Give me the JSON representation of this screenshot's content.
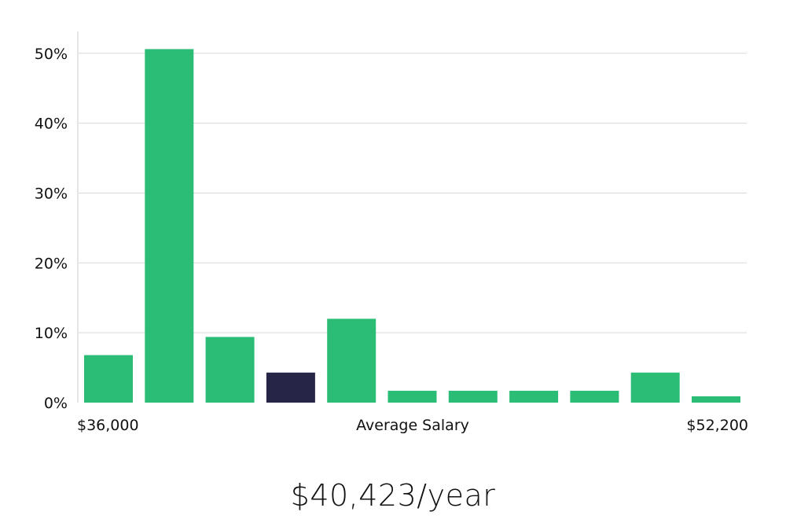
{
  "chart_data": {
    "type": "bar",
    "title": "",
    "xlabel": "Average Salary",
    "ylabel": "",
    "x_range_labels": [
      "$36,000",
      "$52,200"
    ],
    "y_ticks": [
      "0%",
      "10%",
      "20%",
      "30%",
      "40%",
      "50%"
    ],
    "ylim": [
      0,
      53
    ],
    "grid": true,
    "values": [
      6.8,
      50.6,
      9.4,
      4.3,
      12.0,
      1.7,
      1.7,
      1.7,
      1.7,
      4.3,
      0.9
    ],
    "highlight_index": 3,
    "colors": {
      "bar": "#2bbd76",
      "highlight": "#262547",
      "grid": "#d9d9d9",
      "axis": "#cccccc"
    }
  },
  "summary": {
    "average_salary": "$40,423/year"
  }
}
